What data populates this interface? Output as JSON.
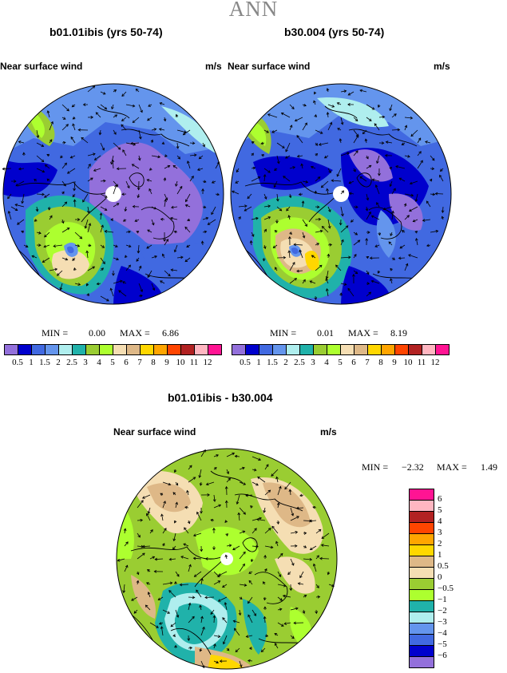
{
  "page_title": "ANN",
  "variable": "Near surface wind",
  "units": "m/s",
  "panels": [
    {
      "id": "left",
      "title": "b01.01ibis (yrs 50-74)",
      "min_label": "MIN =",
      "min_value": "0.00",
      "max_label": "MAX =",
      "max_value": "6.86"
    },
    {
      "id": "right",
      "title": "b30.004 (yrs 50-74)",
      "min_label": "MIN =",
      "min_value": "0.01",
      "max_label": "MAX =",
      "max_value": "8.19"
    }
  ],
  "diff_panel": {
    "title": "b01.01ibis - b30.004",
    "min_label": "MIN =",
    "min_value": "−2.32",
    "max_label": "MAX =",
    "max_value": "1.49"
  },
  "abs_colorbar": {
    "ticks": [
      "0.5",
      "1",
      "1.5",
      "2",
      "2.5",
      "3",
      "4",
      "5",
      "6",
      "7",
      "8",
      "9",
      "10",
      "11",
      "12"
    ],
    "colors": [
      "#9370db",
      "#0000cd",
      "#4169e1",
      "#6495ed",
      "#afeeee",
      "#20b2aa",
      "#9acd32",
      "#adff2f",
      "#f5deb3",
      "#deb887",
      "#ffd700",
      "#ffa500",
      "#ff4500",
      "#b22222",
      "#ffb6c1",
      "#ff1493"
    ]
  },
  "diff_colorbar": {
    "ticks": [
      "6",
      "5",
      "4",
      "3",
      "2",
      "1",
      "0.5",
      "0",
      "−0.5",
      "−1",
      "−2",
      "−3",
      "−4",
      "−5",
      "−6"
    ],
    "colors": [
      "#ff1493",
      "#ffb6c1",
      "#b22222",
      "#ff4500",
      "#ffa500",
      "#ffd700",
      "#deb887",
      "#f5deb3",
      "#9acd32",
      "#adff2f",
      "#20b2aa",
      "#afeeee",
      "#6495ed",
      "#4169e1",
      "#0000cd",
      "#9370db"
    ]
  }
}
